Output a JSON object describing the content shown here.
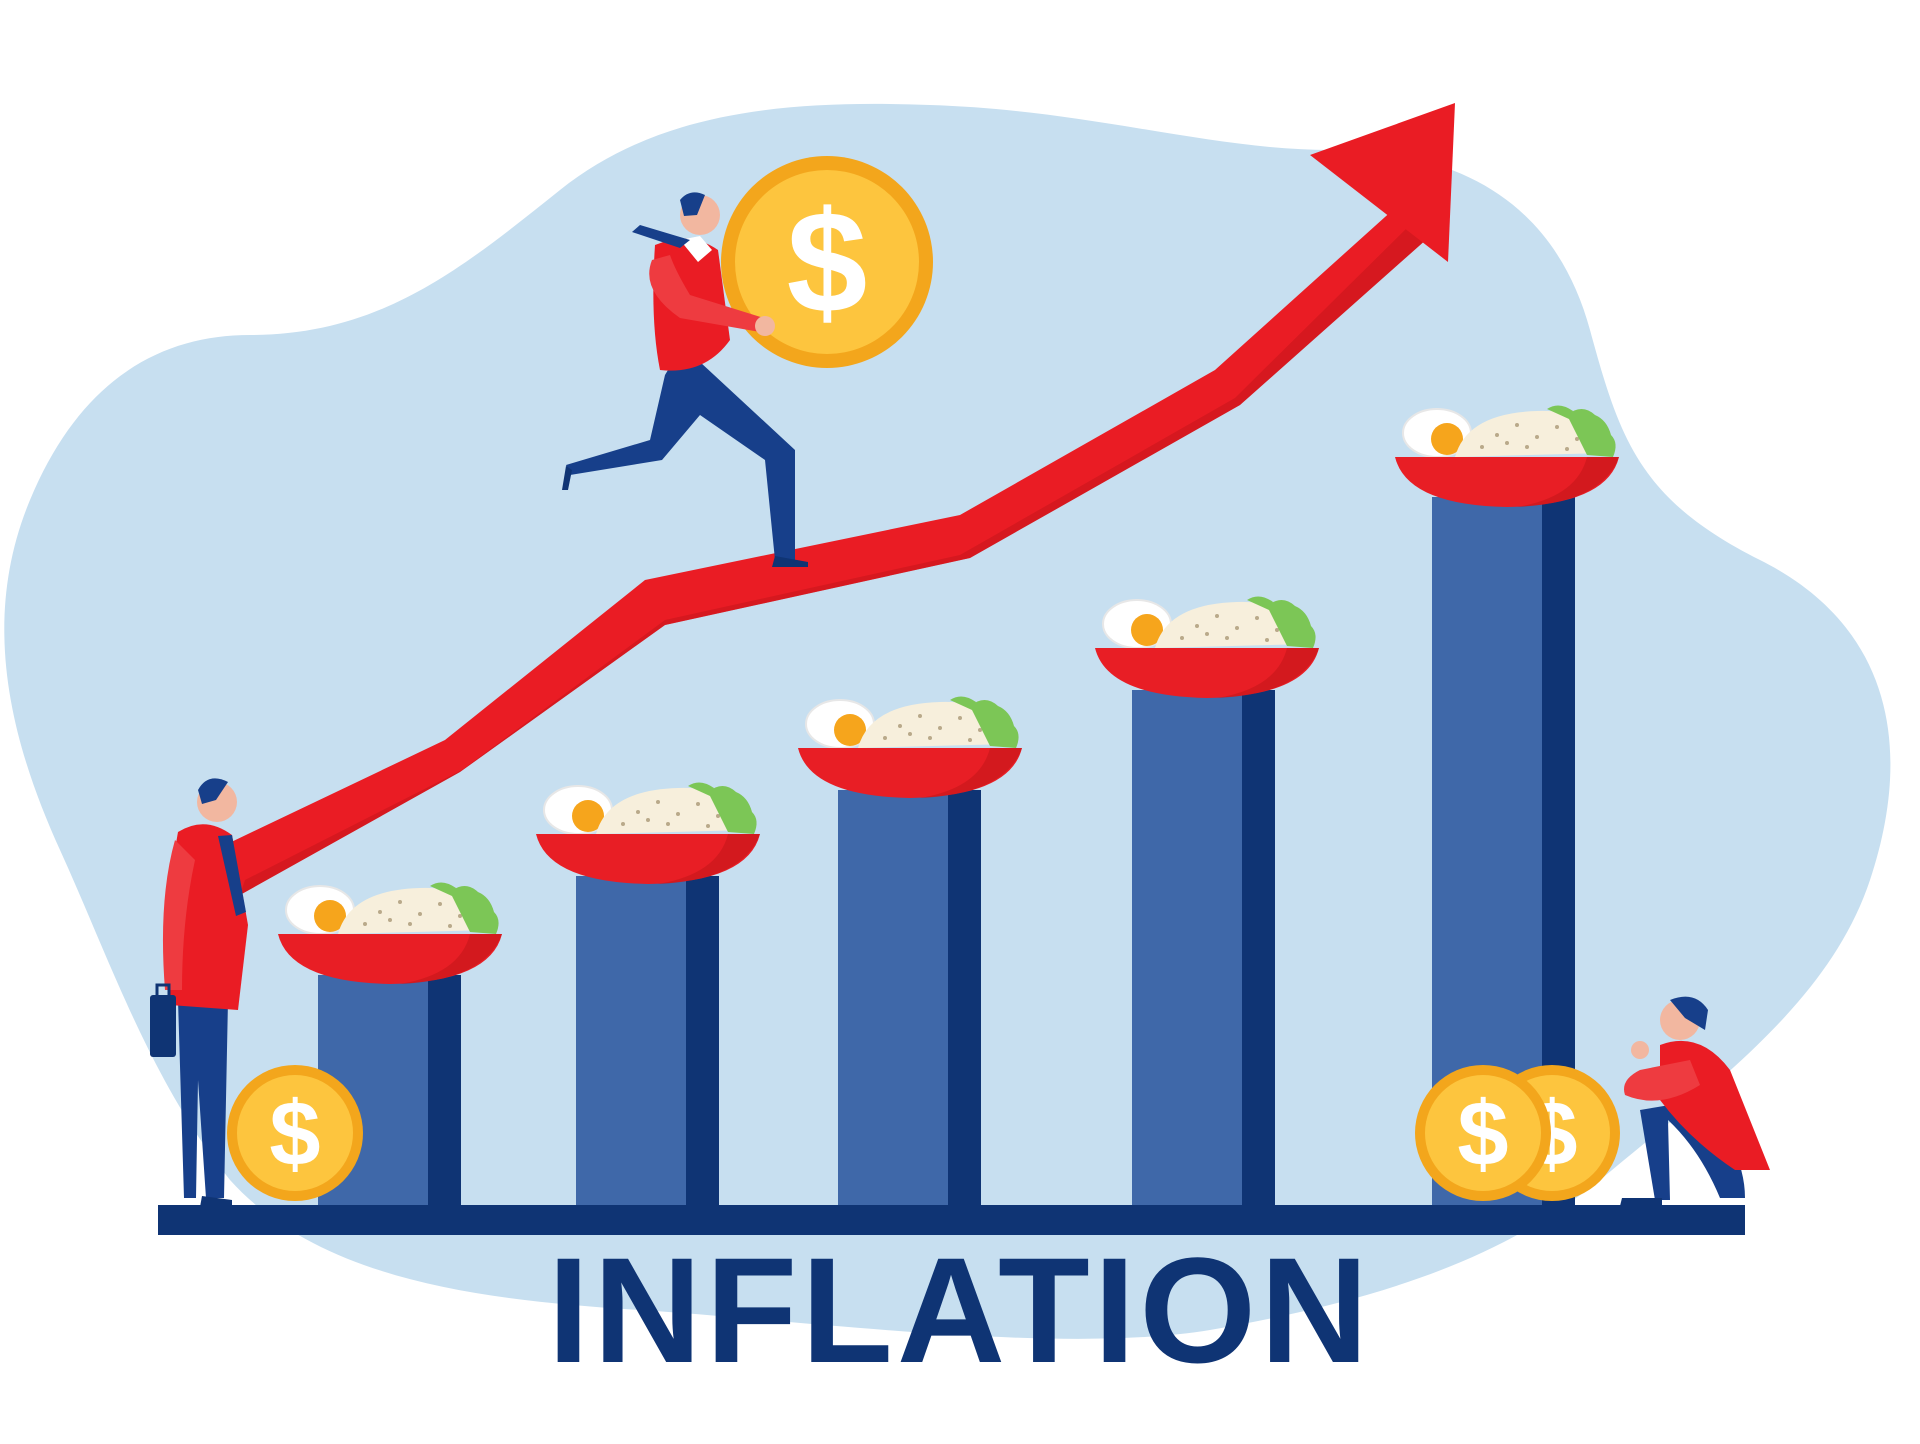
{
  "title": "INFLATION",
  "coin_symbol": "$",
  "colors": {
    "background_blob": "#c7dff0",
    "bar_light": "#3f68a9",
    "bar_dark": "#0f3474",
    "arrow": "#ea1c24",
    "coin_outer": "#f3a61c",
    "coin_inner": "#fdc53e",
    "bowl": "#e81e25",
    "title": "#0f3474"
  },
  "illustration": {
    "bar_count": 5,
    "relative_bar_levels": [
      1,
      2,
      3,
      4,
      5
    ],
    "icons": [
      "trend-arrow-icon",
      "dollar-coin-icon",
      "food-bowl-icon",
      "businessman-figure",
      "briefcase-icon"
    ]
  }
}
